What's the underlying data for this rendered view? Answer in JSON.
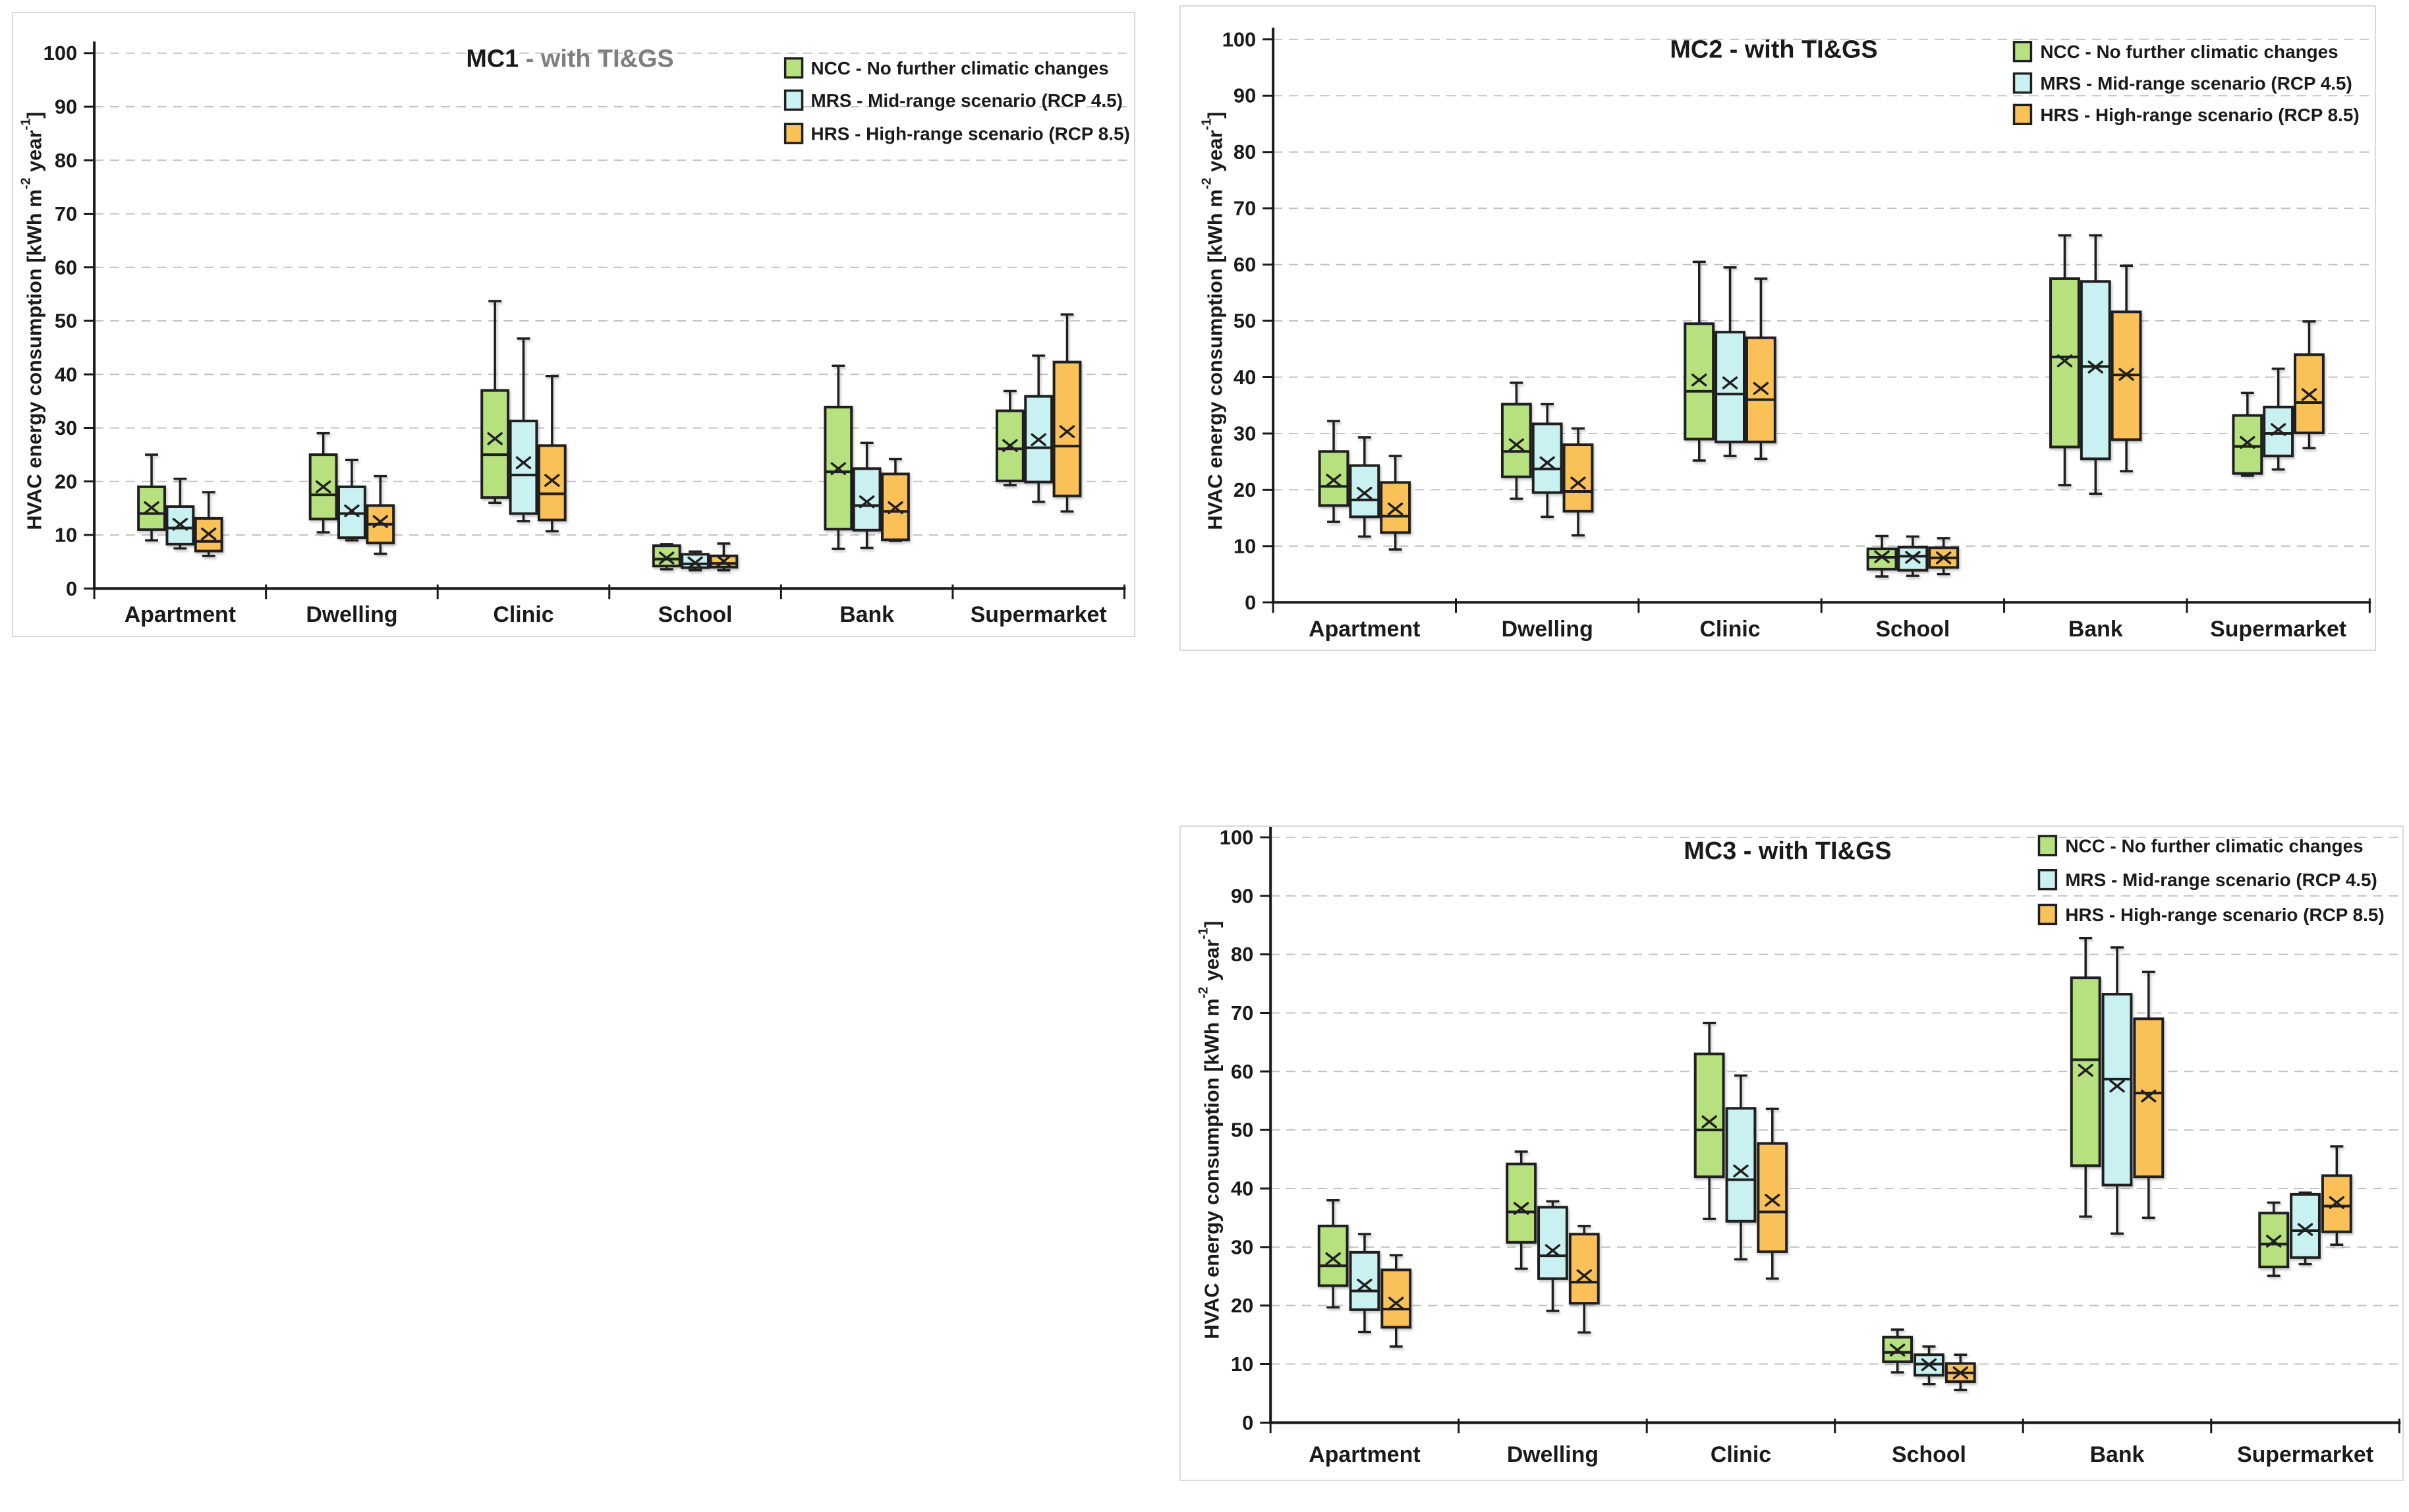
{
  "figure": {
    "ylabel": {
      "full": "HVAC energy consumption [kWh m-2 year-1]",
      "pre": "HVAC energy consumption [kWh m",
      "sup1": "-2",
      "mid": " year",
      "sup2": "-1",
      "post": "]"
    },
    "background_color": "#ffffff",
    "panel_border_color": "#d9d9d9",
    "gridline_color": "#c2c2c2",
    "axis_color": "#1a1a1a"
  },
  "legend": {
    "items": [
      {
        "key": "NCC",
        "label": "NCC - No further climatic changes",
        "color": "#b6e17e"
      },
      {
        "key": "MRS",
        "label": "MRS - Mid-range scenario (RCP 4.5)",
        "color": "#c9f1f2"
      },
      {
        "key": "HRS",
        "label": "HRS - High-range scenario (RCP 8.5)",
        "color": "#fac158"
      }
    ]
  },
  "chart_data": [
    {
      "id": "mc1",
      "type": "box",
      "title_main": "MC1",
      "title_suffix": " - with TI&GS",
      "title_main_color": "#1a1a1a",
      "title_suffix_color": "#7f7f7f",
      "categories": [
        "Apartment",
        "Dwelling",
        "Clinic",
        "School",
        "Bank",
        "Supermarket"
      ],
      "yticks": [
        0,
        10,
        20,
        30,
        40,
        50,
        60,
        70,
        80,
        90,
        100
      ],
      "ylim": [
        0,
        100
      ],
      "grid": "dashed-horizontal",
      "legend_position": "top-right",
      "series": [
        {
          "name": "NCC",
          "boxes": [
            {
              "lo": 9,
              "q1": 11,
              "med": 14,
              "q3": 19,
              "hi": 25,
              "mean": 15.1
            },
            {
              "lo": 10.5,
              "q1": 13,
              "med": 17.5,
              "q3": 25,
              "hi": 29,
              "mean": 19
            },
            {
              "lo": 16,
              "q1": 17,
              "med": 25,
              "q3": 37,
              "hi": 53.7,
              "mean": 28
            },
            {
              "lo": 3.6,
              "q1": 4.2,
              "med": 5.5,
              "q3": 8,
              "hi": 8.3,
              "mean": 5.7
            },
            {
              "lo": 7.4,
              "q1": 11.1,
              "med": 21.8,
              "q3": 33.9,
              "hi": 41.6,
              "mean": 22.4
            },
            {
              "lo": 19.3,
              "q1": 20.1,
              "med": 26.1,
              "q3": 33.2,
              "hi": 36.9,
              "mean": 26.7
            }
          ]
        },
        {
          "name": "MRS",
          "boxes": [
            {
              "lo": 7.5,
              "q1": 8.3,
              "med": 11.3,
              "q3": 15.3,
              "hi": 20.5,
              "mean": 12
            },
            {
              "lo": 9,
              "q1": 9.5,
              "med": 14,
              "q3": 19,
              "hi": 24,
              "mean": 14.5
            },
            {
              "lo": 12.6,
              "q1": 14,
              "med": 21.2,
              "q3": 31.3,
              "hi": 46.7,
              "mean": 23.5
            },
            {
              "lo": 3.4,
              "q1": 3.9,
              "med": 4.6,
              "q3": 6.4,
              "hi": 6.9,
              "mean": 4.8
            },
            {
              "lo": 7.6,
              "q1": 10.9,
              "med": 15.5,
              "q3": 22.4,
              "hi": 27.2,
              "mean": 16.2
            },
            {
              "lo": 16.2,
              "q1": 19.9,
              "med": 26.3,
              "q3": 35.9,
              "hi": 43.5,
              "mean": 27.8
            }
          ]
        },
        {
          "name": "HRS",
          "boxes": [
            {
              "lo": 6.1,
              "q1": 7,
              "med": 8.8,
              "q3": 13.1,
              "hi": 18,
              "mean": 10.2
            },
            {
              "lo": 6.5,
              "q1": 8.5,
              "med": 12,
              "q3": 15.5,
              "hi": 21,
              "mean": 12.5
            },
            {
              "lo": 10.7,
              "q1": 12.8,
              "med": 17.7,
              "q3": 26.7,
              "hi": 39.7,
              "mean": 20.2
            },
            {
              "lo": 3.4,
              "q1": 4,
              "med": 4.7,
              "q3": 6.1,
              "hi": 8.4,
              "mean": 5.1
            },
            {
              "lo": 8.9,
              "q1": 9.1,
              "med": 14.4,
              "q3": 21.4,
              "hi": 24.2,
              "mean": 15.1
            },
            {
              "lo": 14.4,
              "q1": 17.3,
              "med": 26.6,
              "q3": 42.3,
              "hi": 51.2,
              "mean": 29.3
            }
          ]
        }
      ]
    },
    {
      "id": "mc2",
      "type": "box",
      "title_main": "MC2",
      "title_suffix": " - with TI&GS",
      "title_main_color": "#1a1a1a",
      "title_suffix_color": "#1a1a1a",
      "categories": [
        "Apartment",
        "Dwelling",
        "Clinic",
        "School",
        "Bank",
        "Supermarket"
      ],
      "yticks": [
        0,
        10,
        20,
        30,
        40,
        50,
        60,
        70,
        80,
        90,
        100
      ],
      "ylim": [
        0,
        100
      ],
      "grid": "dashed-horizontal",
      "legend_position": "top-right",
      "series": [
        {
          "name": "NCC",
          "boxes": [
            {
              "lo": 14.3,
              "q1": 17.2,
              "med": 20.6,
              "q3": 26.8,
              "hi": 32.2,
              "mean": 21.7
            },
            {
              "lo": 18.4,
              "q1": 22.3,
              "med": 26.8,
              "q3": 35.2,
              "hi": 39,
              "mean": 28
            },
            {
              "lo": 25.2,
              "q1": 29,
              "med": 37.5,
              "q3": 49.5,
              "hi": 60.5,
              "mean": 39.5
            },
            {
              "lo": 4.6,
              "q1": 5.9,
              "med": 8,
              "q3": 9.5,
              "hi": 11.8,
              "mean": 8.1
            },
            {
              "lo": 20.8,
              "q1": 27.6,
              "med": 43.6,
              "q3": 57.5,
              "hi": 65.2,
              "mean": 42.9
            },
            {
              "lo": 22.5,
              "q1": 22.9,
              "med": 27.7,
              "q3": 33.2,
              "hi": 37.2,
              "mean": 28.4
            }
          ]
        },
        {
          "name": "MRS",
          "boxes": [
            {
              "lo": 11.7,
              "q1": 15.2,
              "med": 18.2,
              "q3": 24.3,
              "hi": 29.3,
              "mean": 19.4
            },
            {
              "lo": 15.2,
              "q1": 19.5,
              "med": 23.7,
              "q3": 31.7,
              "hi": 35.2,
              "mean": 24.8
            },
            {
              "lo": 26,
              "q1": 28.5,
              "med": 37,
              "q3": 48,
              "hi": 59.5,
              "mean": 39
            },
            {
              "lo": 4.7,
              "q1": 5.7,
              "med": 8.2,
              "q3": 9.8,
              "hi": 11.7,
              "mean": 8
            },
            {
              "lo": 19.3,
              "q1": 25.5,
              "med": 41.9,
              "q3": 57,
              "hi": 65.2,
              "mean": 41.8
            },
            {
              "lo": 23.6,
              "q1": 26,
              "med": 30,
              "q3": 34.7,
              "hi": 41.5,
              "mean": 30.7
            }
          ]
        },
        {
          "name": "HRS",
          "boxes": [
            {
              "lo": 9.4,
              "q1": 12.4,
              "med": 15.3,
              "q3": 21.3,
              "hi": 26,
              "mean": 16.6
            },
            {
              "lo": 11.9,
              "q1": 16.2,
              "med": 19.7,
              "q3": 28,
              "hi": 30.9,
              "mean": 21.2
            },
            {
              "lo": 25.5,
              "q1": 28.5,
              "med": 36,
              "q3": 47,
              "hi": 57.5,
              "mean": 38
            },
            {
              "lo": 5,
              "q1": 6.2,
              "med": 7.9,
              "q3": 9.7,
              "hi": 11.4,
              "mean": 7.9
            },
            {
              "lo": 23.3,
              "q1": 28.9,
              "med": 40.4,
              "q3": 51.6,
              "hi": 59.8,
              "mean": 40.5
            },
            {
              "lo": 27.4,
              "q1": 30.1,
              "med": 35.5,
              "q3": 44,
              "hi": 49.9,
              "mean": 36.9
            }
          ]
        }
      ]
    },
    {
      "id": "mc3",
      "type": "box",
      "title_main": "MC3",
      "title_suffix": " - with TI&GS",
      "title_main_color": "#1a1a1a",
      "title_suffix_color": "#1a1a1a",
      "categories": [
        "Apartment",
        "Dwelling",
        "Clinic",
        "School",
        "Bank",
        "Supermarket"
      ],
      "yticks": [
        0,
        10,
        20,
        30,
        40,
        50,
        60,
        70,
        80,
        90,
        100
      ],
      "ylim": [
        0,
        100
      ],
      "grid": "dashed-horizontal",
      "legend_position": "top-right",
      "series": [
        {
          "name": "NCC",
          "boxes": [
            {
              "lo": 19.7,
              "q1": 23.4,
              "med": 26.8,
              "q3": 33.6,
              "hi": 38,
              "mean": 28
            },
            {
              "lo": 26.3,
              "q1": 30.8,
              "med": 36,
              "q3": 44.2,
              "hi": 46.3,
              "mean": 36.6
            },
            {
              "lo": 34.8,
              "q1": 42,
              "med": 50,
              "q3": 63,
              "hi": 68.3,
              "mean": 51.4
            },
            {
              "lo": 8.6,
              "q1": 10.4,
              "med": 12,
              "q3": 14.6,
              "hi": 15.9,
              "mean": 12.4
            },
            {
              "lo": 35.2,
              "q1": 43.9,
              "med": 62,
              "q3": 76,
              "hi": 82.8,
              "mean": 60.2
            },
            {
              "lo": 25.1,
              "q1": 26.6,
              "med": 30.5,
              "q3": 35.8,
              "hi": 37.6,
              "mean": 31
            }
          ]
        },
        {
          "name": "MRS",
          "boxes": [
            {
              "lo": 15.5,
              "q1": 19.3,
              "med": 22.5,
              "q3": 29.1,
              "hi": 32.2,
              "mean": 23.5
            },
            {
              "lo": 19.1,
              "q1": 24.6,
              "med": 28.5,
              "q3": 36.8,
              "hi": 37.8,
              "mean": 29.4
            },
            {
              "lo": 27.9,
              "q1": 34.4,
              "med": 41.5,
              "q3": 53.7,
              "hi": 59.3,
              "mean": 43
            },
            {
              "lo": 6.6,
              "q1": 8.1,
              "med": 10,
              "q3": 11.6,
              "hi": 13,
              "mean": 9.9
            },
            {
              "lo": 32.3,
              "q1": 40.6,
              "med": 58.7,
              "q3": 73.2,
              "hi": 81.2,
              "mean": 57.5
            },
            {
              "lo": 27.1,
              "q1": 28.2,
              "med": 32.8,
              "q3": 39,
              "hi": 39.3,
              "mean": 33
            }
          ]
        },
        {
          "name": "HRS",
          "boxes": [
            {
              "lo": 13,
              "q1": 16.3,
              "med": 19.4,
              "q3": 26.1,
              "hi": 28.6,
              "mean": 20.4
            },
            {
              "lo": 15.4,
              "q1": 20.4,
              "med": 24,
              "q3": 32.2,
              "hi": 33.6,
              "mean": 25.1
            },
            {
              "lo": 24.6,
              "q1": 29.2,
              "med": 36,
              "q3": 47.7,
              "hi": 53.6,
              "mean": 38
            },
            {
              "lo": 5.6,
              "q1": 7,
              "med": 8.5,
              "q3": 10.1,
              "hi": 11.6,
              "mean": 8.5
            },
            {
              "lo": 35,
              "q1": 42,
              "med": 56.3,
              "q3": 69,
              "hi": 77,
              "mean": 55.8
            },
            {
              "lo": 30.4,
              "q1": 32.6,
              "med": 37,
              "q3": 42.2,
              "hi": 47.2,
              "mean": 37.6
            }
          ]
        }
      ]
    }
  ]
}
